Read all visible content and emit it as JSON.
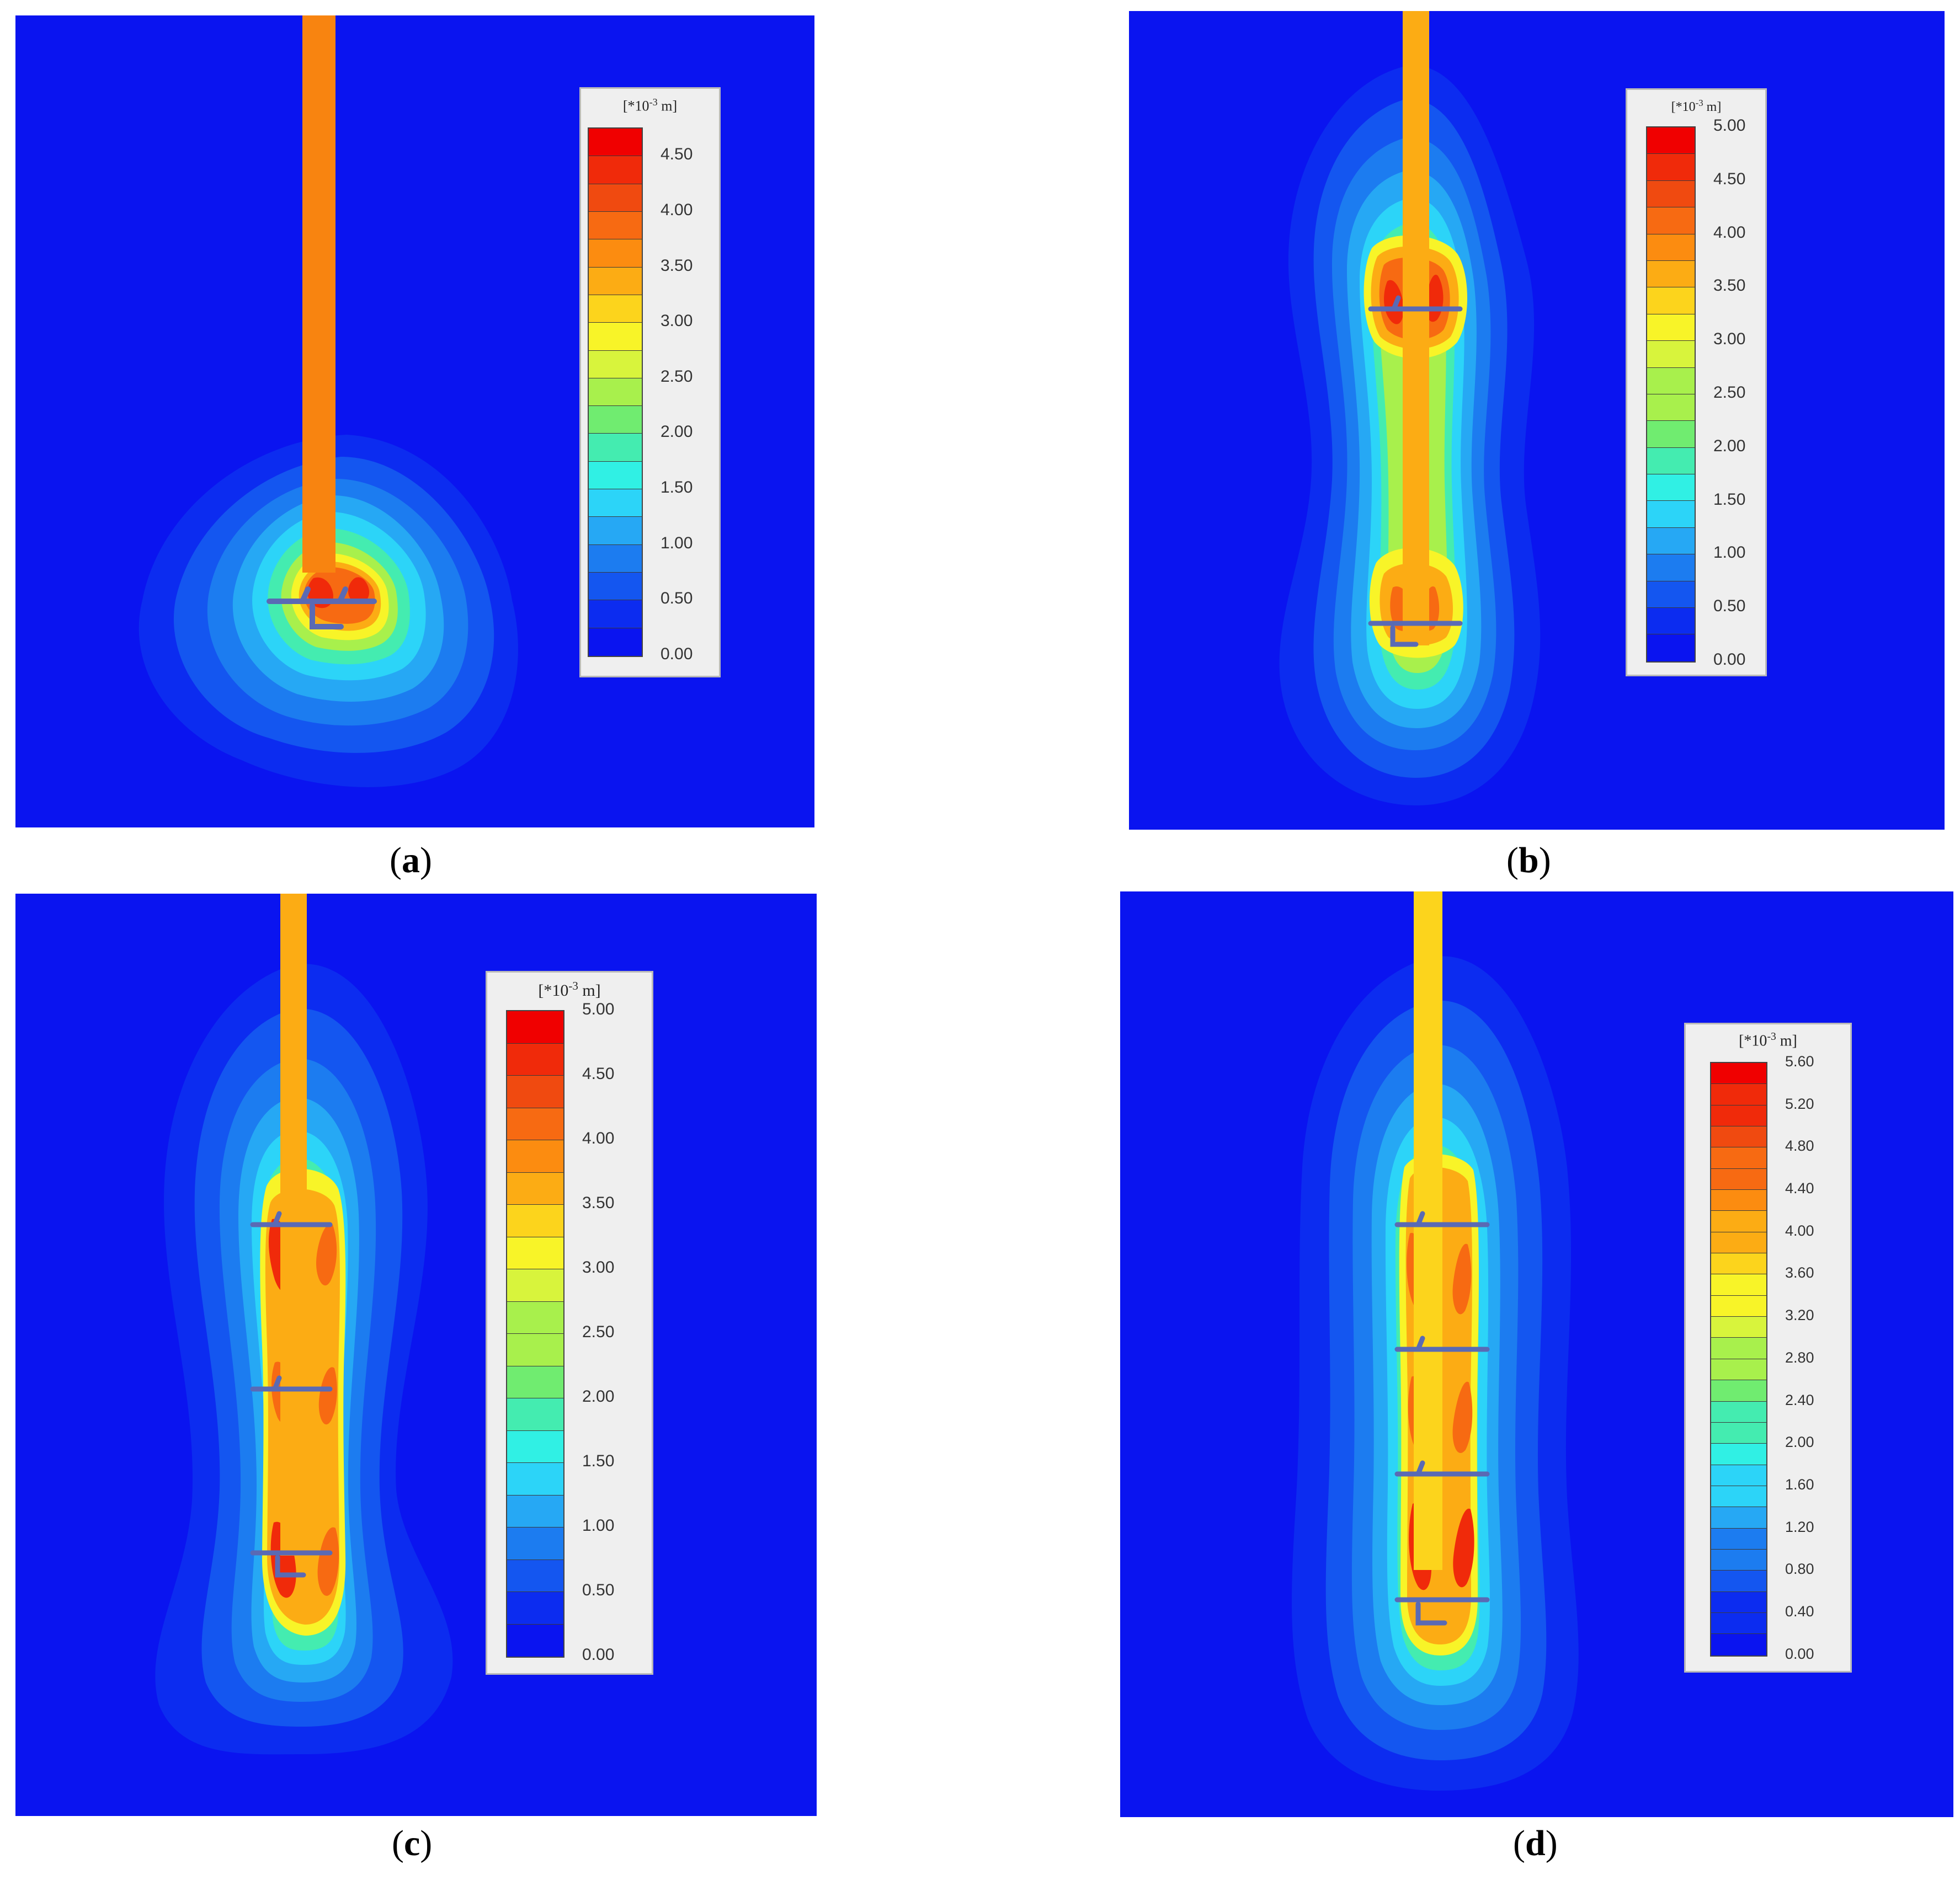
{
  "panels": [
    {
      "id": "a",
      "caption_letter": "a",
      "legend": {
        "unit_prefix": "[*10",
        "unit_exp": "-3",
        "unit_suffix": " m]",
        "ticks": [
          "4.50",
          "4.00",
          "3.50",
          "3.00",
          "2.50",
          "2.00",
          "1.50",
          "1.00",
          "0.50",
          "0.00"
        ]
      }
    },
    {
      "id": "b",
      "caption_letter": "b",
      "legend": {
        "unit_prefix": "[*10",
        "unit_exp": "-3",
        "unit_suffix": " m]",
        "ticks": [
          "5.00",
          "4.50",
          "4.00",
          "3.50",
          "3.00",
          "2.50",
          "2.00",
          "1.50",
          "1.00",
          "0.50",
          "0.00"
        ]
      }
    },
    {
      "id": "c",
      "caption_letter": "c",
      "legend": {
        "unit_prefix": "[*10",
        "unit_exp": "-3",
        "unit_suffix": " m]",
        "ticks": [
          "5.00",
          "4.50",
          "4.00",
          "3.50",
          "3.00",
          "2.50",
          "2.00",
          "1.50",
          "1.00",
          "0.50",
          "0.00"
        ]
      }
    },
    {
      "id": "d",
      "caption_letter": "d",
      "legend": {
        "unit_prefix": "[*10",
        "unit_exp": "-3",
        "unit_suffix": " m]",
        "ticks": [
          "5.60",
          "5.20",
          "4.80",
          "4.40",
          "4.00",
          "3.60",
          "3.20",
          "2.80",
          "2.40",
          "2.00",
          "1.60",
          "1.20",
          "0.80",
          "0.40",
          "0.00"
        ]
      }
    }
  ],
  "colors": {
    "background": "#0a14f0",
    "anchor": "#5a6ab4",
    "scale": [
      "#f00000",
      "#f02a0a",
      "#f04a10",
      "#f76a12",
      "#fc8c10",
      "#fcac14",
      "#fcd41c",
      "#f8f428",
      "#d8f43c",
      "#a8f04c",
      "#70ec70",
      "#44ecb0",
      "#30f0e4",
      "#2cd4f8",
      "#26a8f4",
      "#1c7cf0",
      "#1456f0",
      "#0c2cf0",
      "#0a14f0"
    ]
  }
}
